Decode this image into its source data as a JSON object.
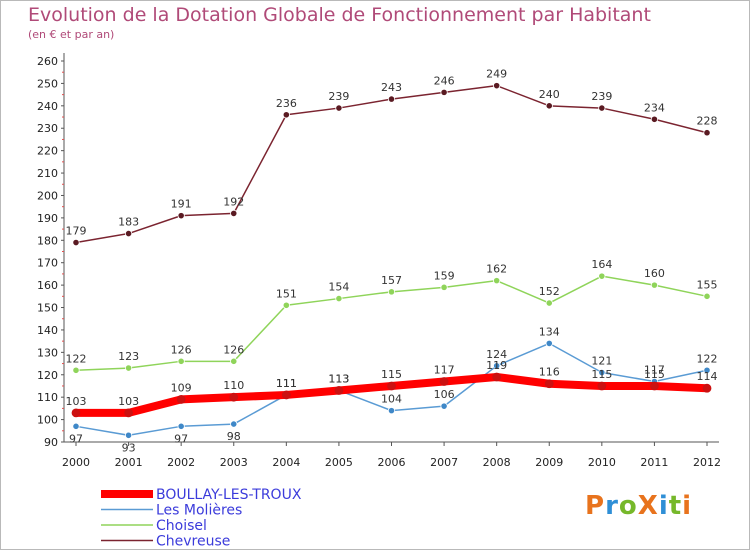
{
  "title": "Evolution de la Dotation Globale de Fonctionnement par Habitant",
  "subtitle": "(en € et par an)",
  "logo": {
    "text": "ProXiti",
    "colors": [
      "#e8731d",
      "#2f8fd6",
      "#76b82a",
      "#e8731d",
      "#2f8fd6",
      "#76b82a",
      "#e8731d"
    ]
  },
  "chart_data": {
    "type": "line",
    "x": [
      "2000",
      "2001",
      "2002",
      "2003",
      "2004",
      "2005",
      "2006",
      "2007",
      "2008",
      "2009",
      "2010",
      "2011",
      "2012"
    ],
    "ylim": [
      90,
      260
    ],
    "yticks": [
      90,
      100,
      110,
      120,
      130,
      140,
      150,
      160,
      170,
      180,
      190,
      200,
      210,
      220,
      230,
      240,
      250,
      260
    ],
    "grid": false,
    "legend_position": "bottom-left",
    "series": [
      {
        "name": "Chevreuse",
        "color": "#7b2430",
        "values": [
          179,
          183,
          191,
          192,
          236,
          239,
          243,
          246,
          249,
          240,
          239,
          234,
          228
        ]
      },
      {
        "name": "Choisel",
        "color": "#8fd45a",
        "values": [
          122,
          123,
          126,
          126,
          151,
          154,
          157,
          159,
          162,
          152,
          164,
          160,
          155
        ]
      },
      {
        "name": "Les Molières",
        "color": "#5a9bd4",
        "values": [
          97,
          93,
          97,
          98,
          111,
          113,
          104,
          106,
          124,
          134,
          121,
          117,
          122
        ]
      },
      {
        "name": "BOULLAY-LES-TROUX",
        "color": "#ff0000",
        "values": [
          103,
          103,
          109,
          110,
          111,
          113,
          115,
          117,
          119,
          116,
          115,
          115,
          114
        ]
      }
    ]
  }
}
